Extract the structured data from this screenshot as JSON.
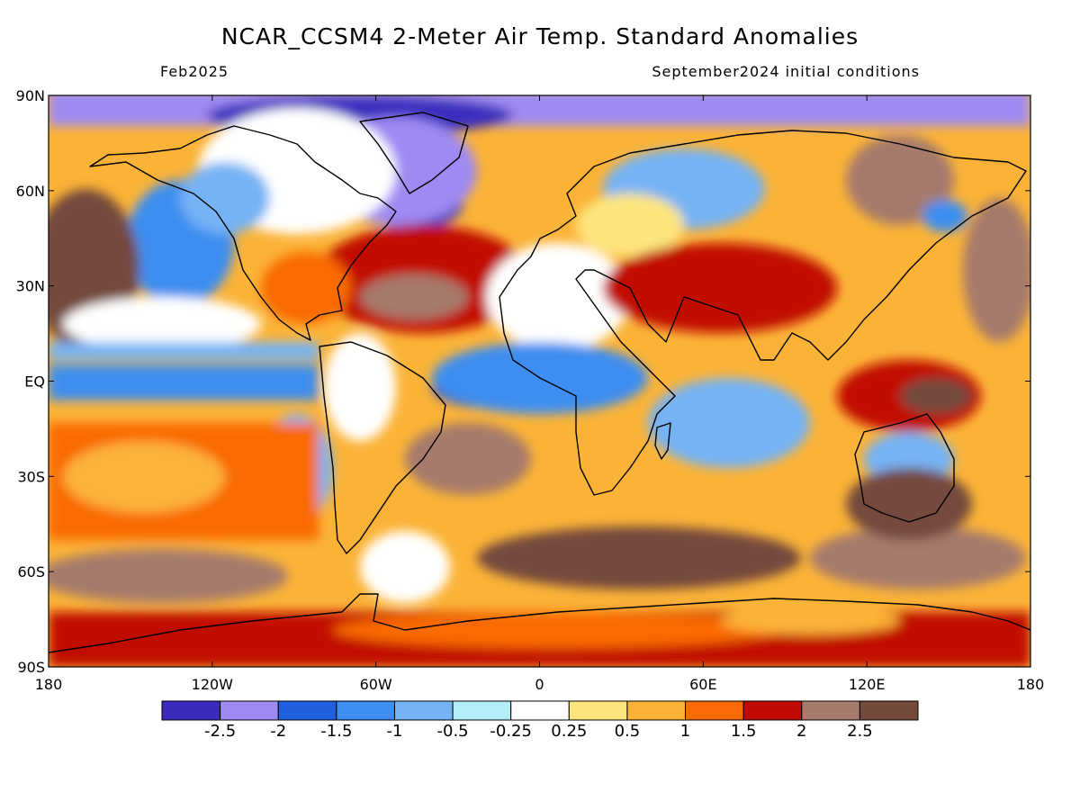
{
  "map": {
    "title": "NCAR_CCSM4 2-Meter Air Temp. Standard Anomalies",
    "valid_month": "Feb2025",
    "initial_conditions": "September2024 initial conditions",
    "projection": "equirectangular",
    "lon_range": [
      -180,
      180
    ],
    "lat_range": [
      -90,
      90
    ],
    "lat_ticks": [
      {
        "value": 90,
        "label": "90N"
      },
      {
        "value": 60,
        "label": "60N"
      },
      {
        "value": 30,
        "label": "30N"
      },
      {
        "value": 0,
        "label": "EQ"
      },
      {
        "value": -30,
        "label": "30S"
      },
      {
        "value": -60,
        "label": "60S"
      },
      {
        "value": -90,
        "label": "90S"
      }
    ],
    "lon_ticks": [
      {
        "value": -180,
        "label": "180"
      },
      {
        "value": -120,
        "label": "120W"
      },
      {
        "value": -60,
        "label": "60W"
      },
      {
        "value": 0,
        "label": "0"
      },
      {
        "value": 60,
        "label": "60E"
      },
      {
        "value": 120,
        "label": "120E"
      },
      {
        "value": 180,
        "label": "180"
      }
    ],
    "colorbar": {
      "colors": [
        "#3a2dbe",
        "#9f8af3",
        "#1f5fe0",
        "#3d8ef0",
        "#76b3f5",
        "#b4ecf8",
        "#ffffff",
        "#fde57b",
        "#fbb337",
        "#f96a05",
        "#c10905",
        "#a67a6c",
        "#744a3c"
      ],
      "labels": [
        "-2.5",
        "-2",
        "-1.5",
        "-1",
        "-0.5",
        "-0.25",
        "0.25",
        "0.5",
        "1",
        "1.5",
        "2",
        "2.5"
      ]
    }
  }
}
